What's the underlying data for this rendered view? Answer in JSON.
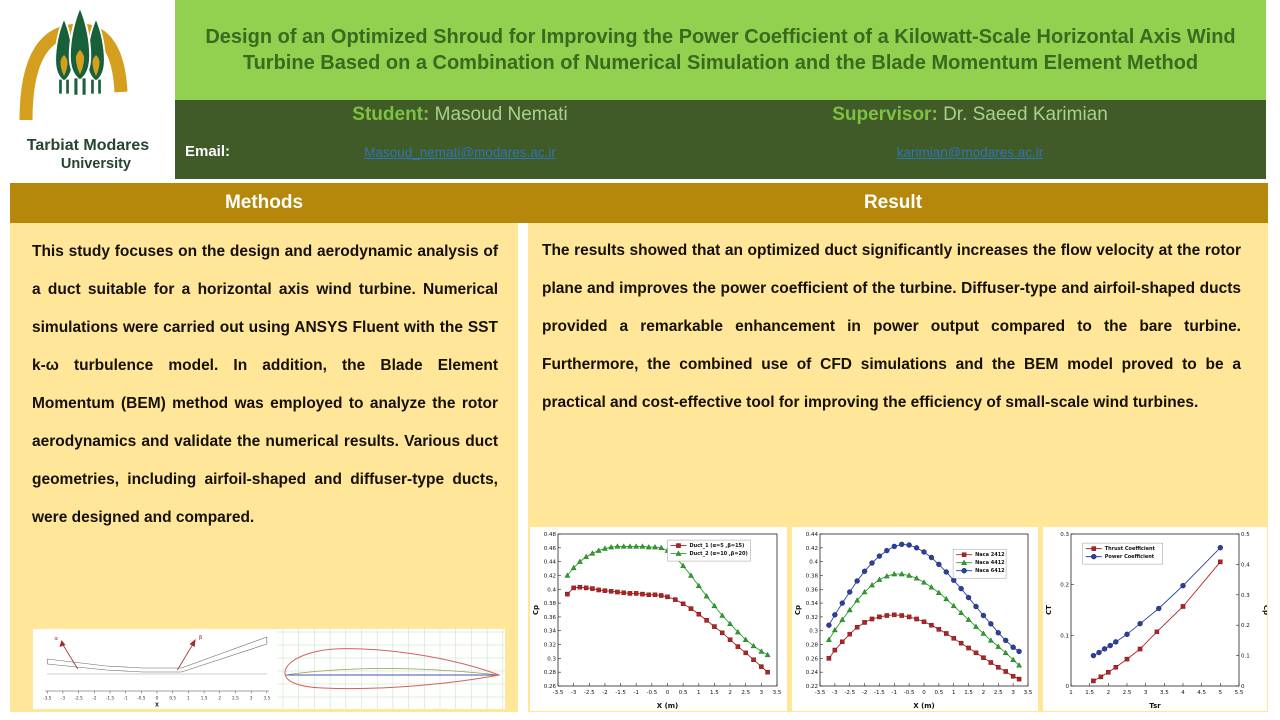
{
  "poster": {
    "logo": {
      "line1": "Tarbiat Modares",
      "line2": "University"
    },
    "title": "Design of an Optimized Shroud for Improving the Power Coefficient of a Kilowatt-Scale Horizontal Axis Wind Turbine Based on a Combination of Numerical Simulation and the Blade Momentum Element Method",
    "people": {
      "student_label": "Student:",
      "student_name": "Masoud Nemati",
      "supervisor_label": "Supervisor:",
      "supervisor_name": "Dr. Saeed Karimian",
      "email_label": "Email:",
      "student_email": "Masoud_nemati@modares.ac.ir",
      "supervisor_email": "karimian@modares.ac.ir"
    },
    "sections": {
      "methods": {
        "heading": "Methods",
        "body": "This study focuses on the design and aerodynamic analysis of a duct suitable for a horizontal axis wind turbine. Numerical simulations were carried out using ANSYS Fluent with the SST k-ω turbulence model. In addition, the Blade Element Momentum (BEM) method was employed to analyze the rotor aerodynamics and validate the numerical results. Various duct geometries, including airfoil-shaped and diffuser-type ducts, were designed and compared."
      },
      "result": {
        "heading": "Result",
        "body": "The results showed that an optimized duct significantly increases the flow velocity at the rotor plane and improves the power coefficient of the turbine. Diffuser-type and airfoil-shaped ducts provided a remarkable enhancement in power output compared to the bare turbine. Furthermore, the combined use of CFD simulations and the BEM model proved to be a practical and cost-effective tool for improving the efficiency of small-scale wind turbines."
      }
    },
    "colors": {
      "title_bg": "#92D050",
      "title_text": "#3A6A1F",
      "band_bg": "#405A28",
      "person_label": "#7DC242",
      "person_name": "#A9D18E",
      "link": "#2E75B6",
      "gold": "#B5870A",
      "panel_bg": "#FFE699"
    }
  },
  "figures": {
    "duct": {
      "xlabel": "X",
      "xticks": [
        -3.5,
        -3,
        -2.5,
        -2,
        -1.5,
        -1,
        -0.5,
        0,
        0.5,
        1,
        1.5,
        2,
        2.5,
        3,
        3.5
      ],
      "alpha_label": "α",
      "beta_label": "β"
    },
    "airfoil": {
      "description": "airfoil-profile-with-chord-and-camber-lines"
    }
  },
  "chart_data": [
    {
      "type": "line",
      "xlabel": "X (m)",
      "ylabel": "Cp",
      "xlim": [
        -3.5,
        3.5
      ],
      "xtick_step": 0.5,
      "ylim": [
        0.26,
        0.48
      ],
      "ytick_step": 0.02,
      "legend_pos": [
        0.5,
        0.04
      ],
      "series": [
        {
          "name": "Duct_1 (α=5 ,β=15)",
          "color": "#B22222",
          "marker": "square",
          "x": [
            -3.2,
            -3.0,
            -2.8,
            -2.6,
            -2.4,
            -2.2,
            -2.0,
            -1.8,
            -1.6,
            -1.4,
            -1.2,
            -1.0,
            -0.8,
            -0.6,
            -0.4,
            -0.2,
            0.0,
            0.25,
            0.5,
            0.75,
            1.0,
            1.25,
            1.5,
            1.75,
            2.0,
            2.25,
            2.5,
            2.75,
            3.0,
            3.2
          ],
          "y": [
            0.393,
            0.402,
            0.403,
            0.402,
            0.401,
            0.399,
            0.398,
            0.397,
            0.396,
            0.395,
            0.394,
            0.394,
            0.393,
            0.392,
            0.392,
            0.391,
            0.389,
            0.385,
            0.379,
            0.372,
            0.364,
            0.355,
            0.346,
            0.337,
            0.327,
            0.317,
            0.308,
            0.298,
            0.288,
            0.28
          ]
        },
        {
          "name": "Duct_2 (α=10 ,β=20)",
          "color": "#2CA02C",
          "marker": "triangle",
          "x": [
            -3.2,
            -3.0,
            -2.8,
            -2.6,
            -2.4,
            -2.2,
            -2.0,
            -1.8,
            -1.6,
            -1.4,
            -1.2,
            -1.0,
            -0.8,
            -0.6,
            -0.4,
            -0.2,
            0.0,
            0.25,
            0.5,
            0.75,
            1.0,
            1.25,
            1.5,
            1.75,
            2.0,
            2.25,
            2.5,
            2.75,
            3.0,
            3.2
          ],
          "y": [
            0.42,
            0.431,
            0.44,
            0.447,
            0.452,
            0.456,
            0.459,
            0.461,
            0.462,
            0.462,
            0.462,
            0.462,
            0.462,
            0.461,
            0.461,
            0.46,
            0.456,
            0.447,
            0.434,
            0.42,
            0.405,
            0.39,
            0.376,
            0.362,
            0.35,
            0.338,
            0.327,
            0.318,
            0.31,
            0.305
          ]
        }
      ]
    },
    {
      "type": "line",
      "xlabel": "X (m)",
      "ylabel": "Cp",
      "xlim": [
        -3.5,
        3.5
      ],
      "xtick_step": 0.5,
      "ylim": [
        0.22,
        0.44
      ],
      "ytick_step": 0.02,
      "legend_pos": [
        0.64,
        0.1
      ],
      "series": [
        {
          "name": "Naca 2412",
          "color": "#B22222",
          "marker": "square",
          "x": [
            -3.2,
            -3.0,
            -2.75,
            -2.5,
            -2.25,
            -2.0,
            -1.75,
            -1.5,
            -1.25,
            -1.0,
            -0.75,
            -0.5,
            -0.25,
            0.0,
            0.25,
            0.5,
            0.75,
            1.0,
            1.25,
            1.5,
            1.75,
            2.0,
            2.25,
            2.5,
            2.75,
            3.0,
            3.2
          ],
          "y": [
            0.26,
            0.272,
            0.284,
            0.295,
            0.305,
            0.312,
            0.317,
            0.32,
            0.322,
            0.323,
            0.322,
            0.32,
            0.317,
            0.313,
            0.308,
            0.302,
            0.296,
            0.289,
            0.282,
            0.275,
            0.268,
            0.261,
            0.254,
            0.247,
            0.241,
            0.234,
            0.23
          ]
        },
        {
          "name": "Naca 4412",
          "color": "#2CA02C",
          "marker": "triangle",
          "x": [
            -3.2,
            -3.0,
            -2.75,
            -2.5,
            -2.25,
            -2.0,
            -1.75,
            -1.5,
            -1.25,
            -1.0,
            -0.75,
            -0.5,
            -0.25,
            0.0,
            0.25,
            0.5,
            0.75,
            1.0,
            1.25,
            1.5,
            1.75,
            2.0,
            2.25,
            2.5,
            2.75,
            3.0,
            3.2
          ],
          "y": [
            0.287,
            0.301,
            0.316,
            0.33,
            0.344,
            0.356,
            0.366,
            0.374,
            0.379,
            0.382,
            0.382,
            0.38,
            0.376,
            0.37,
            0.363,
            0.355,
            0.346,
            0.336,
            0.326,
            0.316,
            0.306,
            0.296,
            0.286,
            0.277,
            0.268,
            0.258,
            0.25
          ]
        },
        {
          "name": "Naca 6412",
          "color": "#2B3F9E",
          "marker": "circle",
          "x": [
            -3.2,
            -3.0,
            -2.75,
            -2.5,
            -2.25,
            -2.0,
            -1.75,
            -1.5,
            -1.25,
            -1.0,
            -0.75,
            -0.5,
            -0.25,
            0.0,
            0.25,
            0.5,
            0.75,
            1.0,
            1.25,
            1.5,
            1.75,
            2.0,
            2.25,
            2.5,
            2.75,
            3.0,
            3.2
          ],
          "y": [
            0.308,
            0.323,
            0.34,
            0.356,
            0.372,
            0.386,
            0.398,
            0.408,
            0.416,
            0.422,
            0.425,
            0.424,
            0.42,
            0.414,
            0.406,
            0.396,
            0.385,
            0.373,
            0.361,
            0.348,
            0.335,
            0.322,
            0.31,
            0.297,
            0.286,
            0.276,
            0.27
          ]
        }
      ]
    },
    {
      "type": "line",
      "xlabel": "Tsr",
      "ylabel": "CT",
      "y2label": "Cp",
      "xlim": [
        1,
        5.5
      ],
      "xtick_step": 0.5,
      "ylim": [
        0,
        0.3
      ],
      "ytick_step": 0.1,
      "y2lim": [
        0,
        0.5
      ],
      "y2tick_step": 0.1,
      "legend_pos": [
        0.07,
        0.06
      ],
      "series": [
        {
          "name": "Thrust Coefficient",
          "color": "#B22222",
          "marker": "square",
          "x": [
            1.6,
            1.8,
            2.0,
            2.2,
            2.5,
            2.85,
            3.3,
            4.0,
            5.0
          ],
          "y": [
            0.01,
            0.018,
            0.027,
            0.037,
            0.053,
            0.073,
            0.107,
            0.157,
            0.245
          ]
        },
        {
          "name": "Power Coefficient",
          "color": "#2B3F9E",
          "marker": "circle",
          "axis": "y2",
          "x": [
            1.6,
            1.75,
            1.9,
            2.05,
            2.2,
            2.5,
            2.85,
            3.35,
            4.0,
            5.0
          ],
          "y": [
            0.1,
            0.11,
            0.122,
            0.133,
            0.145,
            0.17,
            0.205,
            0.255,
            0.33,
            0.455
          ]
        }
      ]
    }
  ]
}
